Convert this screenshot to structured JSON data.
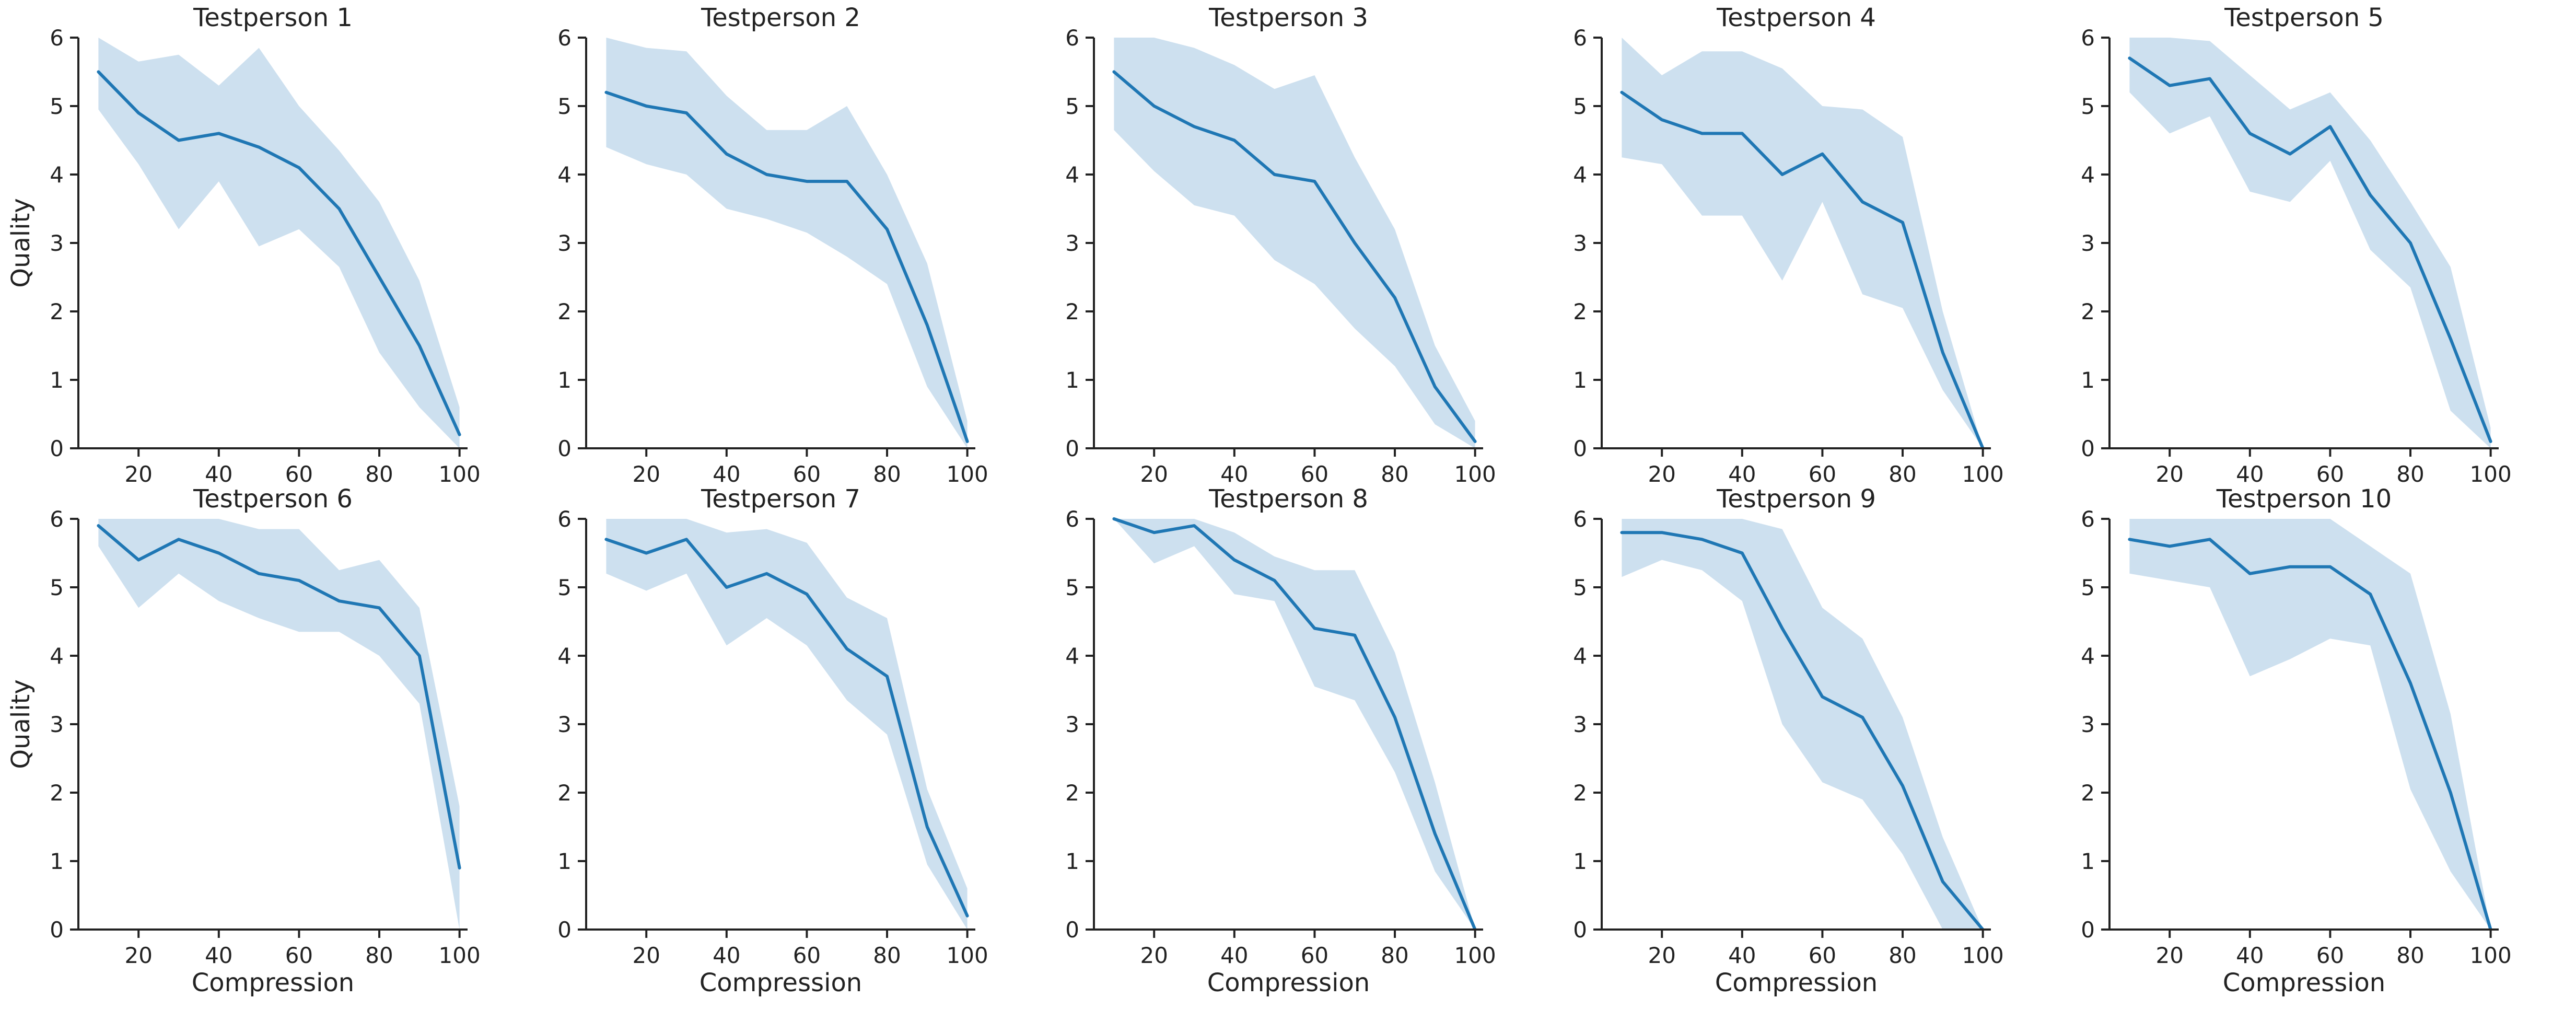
{
  "figure": {
    "colors": {
      "line": "#1f77b4",
      "band": "#cde0ef",
      "axis": "#222222"
    },
    "rows": 2,
    "cols": 5
  },
  "chart_data": [
    {
      "type": "line",
      "title": "Testperson 1",
      "xlabel": "",
      "ylabel": "Quality",
      "xlim": [
        5,
        102
      ],
      "ylim": [
        0,
        6
      ],
      "xticks": [
        20,
        40,
        60,
        80,
        100
      ],
      "yticks": [
        0,
        1,
        2,
        3,
        4,
        5,
        6
      ],
      "x": [
        10,
        20,
        30,
        40,
        50,
        60,
        70,
        80,
        90,
        100
      ],
      "mean": [
        5.5,
        4.9,
        4.5,
        4.6,
        4.4,
        4.1,
        3.5,
        2.5,
        1.5,
        0.2
      ],
      "upper": [
        6.0,
        5.65,
        5.75,
        5.3,
        5.85,
        5.0,
        4.35,
        3.6,
        2.45,
        0.6
      ],
      "lower": [
        4.95,
        4.15,
        3.2,
        3.9,
        2.95,
        3.2,
        2.65,
        1.4,
        0.6,
        0.0
      ],
      "grid": false,
      "legend": "none"
    },
    {
      "type": "line",
      "title": "Testperson 2",
      "xlabel": "",
      "ylabel": "",
      "xlim": [
        5,
        102
      ],
      "ylim": [
        0,
        6
      ],
      "xticks": [
        20,
        40,
        60,
        80,
        100
      ],
      "yticks": [
        0,
        1,
        2,
        3,
        4,
        5,
        6
      ],
      "x": [
        10,
        20,
        30,
        40,
        50,
        60,
        70,
        80,
        90,
        100
      ],
      "mean": [
        5.2,
        5.0,
        4.9,
        4.3,
        4.0,
        3.9,
        3.9,
        3.2,
        1.8,
        0.1
      ],
      "upper": [
        6.0,
        5.85,
        5.8,
        5.15,
        4.65,
        4.65,
        5.0,
        4.0,
        2.7,
        0.4
      ],
      "lower": [
        4.4,
        4.15,
        4.0,
        3.5,
        3.35,
        3.15,
        2.8,
        2.4,
        0.9,
        0.0
      ],
      "grid": false,
      "legend": "none"
    },
    {
      "type": "line",
      "title": "Testperson 3",
      "xlabel": "",
      "ylabel": "",
      "xlim": [
        5,
        102
      ],
      "ylim": [
        0,
        6
      ],
      "xticks": [
        20,
        40,
        60,
        80,
        100
      ],
      "yticks": [
        0,
        1,
        2,
        3,
        4,
        5,
        6
      ],
      "x": [
        10,
        20,
        30,
        40,
        50,
        60,
        70,
        80,
        90,
        100
      ],
      "mean": [
        5.5,
        5.0,
        4.7,
        4.5,
        4.0,
        3.9,
        3.0,
        2.2,
        0.9,
        0.1
      ],
      "upper": [
        6.0,
        6.0,
        5.85,
        5.6,
        5.25,
        5.45,
        4.25,
        3.2,
        1.5,
        0.4
      ],
      "lower": [
        4.65,
        4.05,
        3.55,
        3.4,
        2.75,
        2.4,
        1.75,
        1.2,
        0.35,
        0.0
      ],
      "grid": false,
      "legend": "none"
    },
    {
      "type": "line",
      "title": "Testperson 4",
      "xlabel": "",
      "ylabel": "",
      "xlim": [
        5,
        102
      ],
      "ylim": [
        0,
        6
      ],
      "xticks": [
        20,
        40,
        60,
        80,
        100
      ],
      "yticks": [
        0,
        1,
        2,
        3,
        4,
        5,
        6
      ],
      "x": [
        10,
        20,
        30,
        40,
        50,
        60,
        70,
        80,
        90,
        100
      ],
      "mean": [
        5.2,
        4.8,
        4.6,
        4.6,
        4.0,
        4.3,
        3.6,
        3.3,
        1.4,
        0.0
      ],
      "upper": [
        6.0,
        5.45,
        5.8,
        5.8,
        5.55,
        5.0,
        4.95,
        4.55,
        2.0,
        0.0
      ],
      "lower": [
        4.25,
        4.15,
        3.4,
        3.4,
        2.45,
        3.6,
        2.25,
        2.05,
        0.85,
        0.0
      ],
      "grid": false,
      "legend": "none"
    },
    {
      "type": "line",
      "title": "Testperson 5",
      "xlabel": "",
      "ylabel": "",
      "xlim": [
        5,
        102
      ],
      "ylim": [
        0,
        6
      ],
      "xticks": [
        20,
        40,
        60,
        80,
        100
      ],
      "yticks": [
        0,
        1,
        2,
        3,
        4,
        5,
        6
      ],
      "x": [
        10,
        20,
        30,
        40,
        50,
        60,
        70,
        80,
        90,
        100
      ],
      "mean": [
        5.7,
        5.3,
        5.4,
        4.6,
        4.3,
        4.7,
        3.7,
        3.0,
        1.6,
        0.1
      ],
      "upper": [
        6.0,
        6.0,
        5.95,
        5.45,
        4.95,
        5.2,
        4.5,
        3.6,
        2.65,
        0.3
      ],
      "lower": [
        5.2,
        4.6,
        4.85,
        3.75,
        3.6,
        4.2,
        2.9,
        2.35,
        0.55,
        0.0
      ],
      "grid": false,
      "legend": "none"
    },
    {
      "type": "line",
      "title": "Testperson 6",
      "xlabel": "Compression",
      "ylabel": "Quality",
      "xlim": [
        5,
        102
      ],
      "ylim": [
        0,
        6
      ],
      "xticks": [
        20,
        40,
        60,
        80,
        100
      ],
      "yticks": [
        0,
        1,
        2,
        3,
        4,
        5,
        6
      ],
      "x": [
        10,
        20,
        30,
        40,
        50,
        60,
        70,
        80,
        90,
        100
      ],
      "mean": [
        5.9,
        5.4,
        5.7,
        5.5,
        5.2,
        5.1,
        4.8,
        4.7,
        4.0,
        0.9
      ],
      "upper": [
        6.0,
        6.0,
        6.0,
        6.0,
        5.85,
        5.85,
        5.25,
        5.4,
        4.7,
        1.8
      ],
      "lower": [
        5.6,
        4.7,
        5.2,
        4.8,
        4.55,
        4.35,
        4.35,
        4.0,
        3.3,
        0.0
      ],
      "grid": false,
      "legend": "none"
    },
    {
      "type": "line",
      "title": "Testperson 7",
      "xlabel": "Compression",
      "ylabel": "",
      "xlim": [
        5,
        102
      ],
      "ylim": [
        0,
        6
      ],
      "xticks": [
        20,
        40,
        60,
        80,
        100
      ],
      "yticks": [
        0,
        1,
        2,
        3,
        4,
        5,
        6
      ],
      "x": [
        10,
        20,
        30,
        40,
        50,
        60,
        70,
        80,
        90,
        100
      ],
      "mean": [
        5.7,
        5.5,
        5.7,
        5.0,
        5.2,
        4.9,
        4.1,
        3.7,
        1.5,
        0.2
      ],
      "upper": [
        6.0,
        6.0,
        6.0,
        5.8,
        5.85,
        5.65,
        4.85,
        4.55,
        2.05,
        0.6
      ],
      "lower": [
        5.2,
        4.95,
        5.2,
        4.15,
        4.55,
        4.15,
        3.35,
        2.85,
        0.95,
        0.0
      ],
      "grid": false,
      "legend": "none"
    },
    {
      "type": "line",
      "title": "Testperson 8",
      "xlabel": "Compression",
      "ylabel": "",
      "xlim": [
        5,
        102
      ],
      "ylim": [
        0,
        6
      ],
      "xticks": [
        20,
        40,
        60,
        80,
        100
      ],
      "yticks": [
        0,
        1,
        2,
        3,
        4,
        5,
        6
      ],
      "x": [
        10,
        20,
        30,
        40,
        50,
        60,
        70,
        80,
        90,
        100
      ],
      "mean": [
        6.0,
        5.8,
        5.9,
        5.4,
        5.1,
        4.4,
        4.3,
        3.1,
        1.4,
        0.0
      ],
      "upper": [
        6.0,
        6.0,
        6.0,
        5.8,
        5.45,
        5.25,
        5.25,
        4.05,
        2.15,
        0.0
      ],
      "lower": [
        6.0,
        5.35,
        5.6,
        4.9,
        4.8,
        3.55,
        3.35,
        2.3,
        0.85,
        0.0
      ],
      "grid": false,
      "legend": "none"
    },
    {
      "type": "line",
      "title": "Testperson 9",
      "xlabel": "Compression",
      "ylabel": "",
      "xlim": [
        5,
        102
      ],
      "ylim": [
        0,
        6
      ],
      "xticks": [
        20,
        40,
        60,
        80,
        100
      ],
      "yticks": [
        0,
        1,
        2,
        3,
        4,
        5,
        6
      ],
      "x": [
        10,
        20,
        30,
        40,
        50,
        60,
        70,
        80,
        90,
        100
      ],
      "mean": [
        5.8,
        5.8,
        5.7,
        5.5,
        4.4,
        3.4,
        3.1,
        2.1,
        0.7,
        0.0
      ],
      "upper": [
        6.0,
        6.0,
        6.0,
        6.0,
        5.85,
        4.7,
        4.25,
        3.1,
        1.35,
        0.0
      ],
      "lower": [
        5.15,
        5.4,
        5.25,
        4.8,
        3.0,
        2.15,
        1.9,
        1.1,
        0.0,
        0.0
      ],
      "grid": false,
      "legend": "none"
    },
    {
      "type": "line",
      "title": "Testperson 10",
      "xlabel": "Compression",
      "ylabel": "",
      "xlim": [
        5,
        102
      ],
      "ylim": [
        0,
        6
      ],
      "xticks": [
        20,
        40,
        60,
        80,
        100
      ],
      "yticks": [
        0,
        1,
        2,
        3,
        4,
        5,
        6
      ],
      "x": [
        10,
        20,
        30,
        40,
        50,
        60,
        70,
        80,
        90,
        100
      ],
      "mean": [
        5.7,
        5.6,
        5.7,
        5.2,
        5.3,
        5.3,
        4.9,
        3.6,
        2.0,
        0.0
      ],
      "upper": [
        6.0,
        6.0,
        6.0,
        6.0,
        6.0,
        6.0,
        5.6,
        5.2,
        3.15,
        0.0
      ],
      "lower": [
        5.2,
        5.1,
        5.0,
        3.7,
        3.95,
        4.25,
        4.15,
        2.05,
        0.85,
        0.0
      ],
      "grid": false,
      "legend": "none"
    }
  ]
}
